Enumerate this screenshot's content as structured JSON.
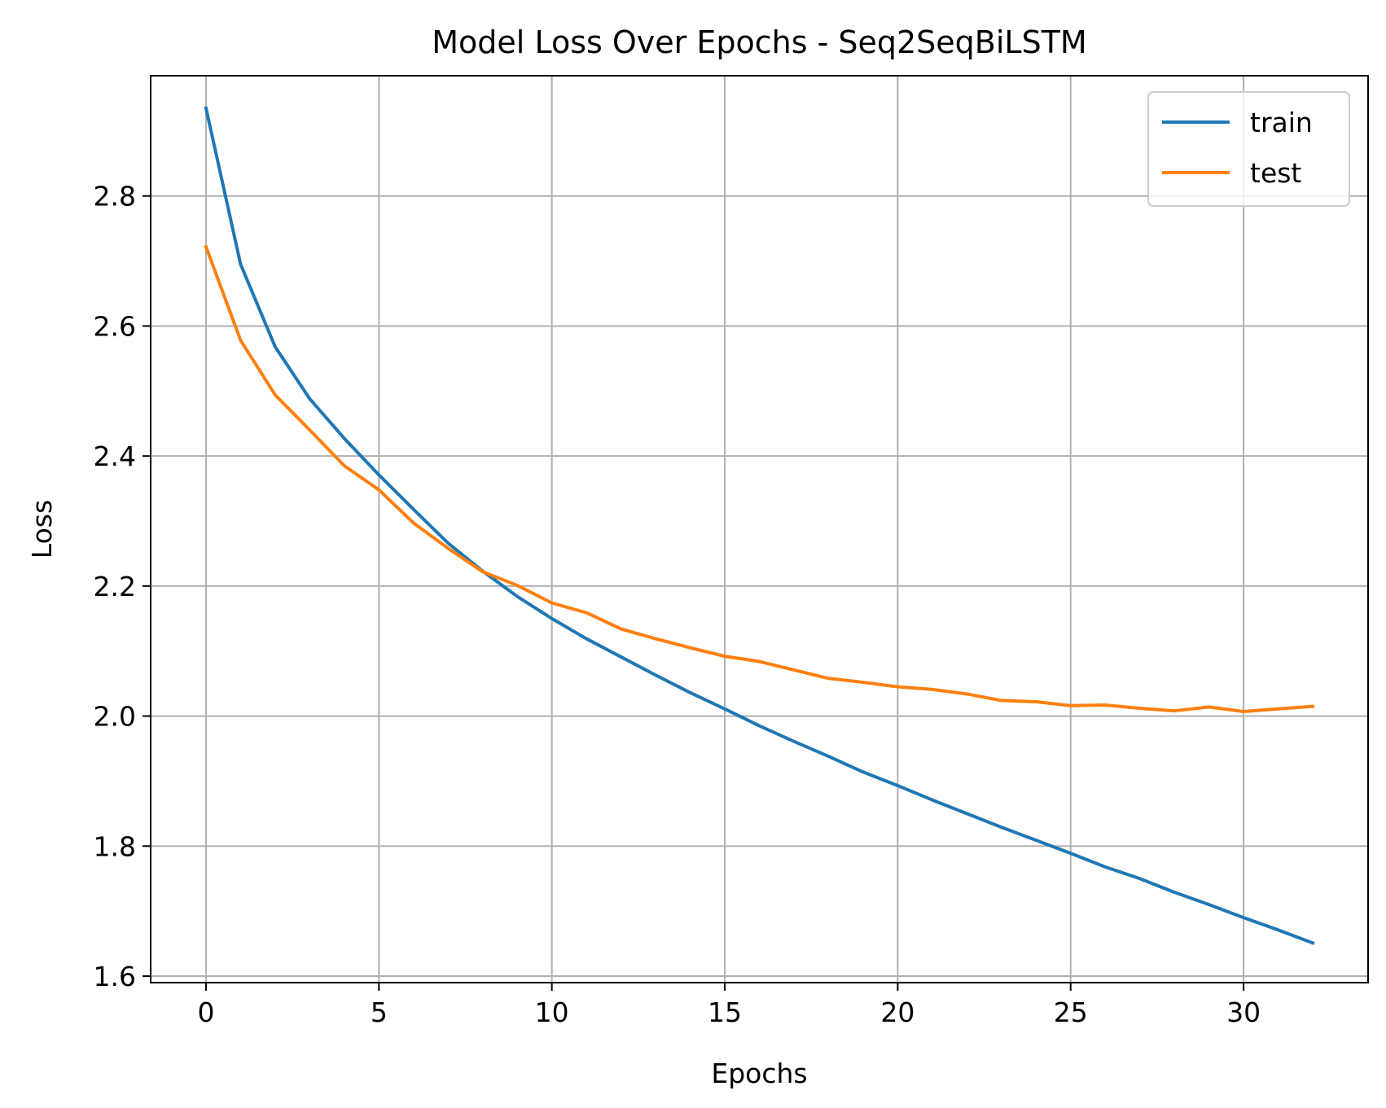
{
  "chart_data": {
    "type": "line",
    "title": "Model Loss Over Epochs - Seq2SeqBiLSTM",
    "xlabel": "Epochs",
    "ylabel": "Loss",
    "xlim": [
      -1.6,
      33.6
    ],
    "ylim": [
      1.59,
      2.985
    ],
    "xticks": [
      0,
      5,
      10,
      15,
      20,
      25,
      30
    ],
    "yticks": [
      1.6,
      1.8,
      2.0,
      2.2,
      2.4,
      2.6,
      2.8
    ],
    "ytick_labels": [
      "1.6",
      "1.8",
      "2.0",
      "2.2",
      "2.4",
      "2.6",
      "2.8"
    ],
    "grid": true,
    "legend_position": "top-right",
    "x": [
      0,
      1,
      2,
      3,
      4,
      5,
      6,
      7,
      8,
      9,
      10,
      11,
      12,
      13,
      14,
      15,
      16,
      17,
      18,
      19,
      20,
      21,
      22,
      23,
      24,
      25,
      26,
      27,
      28,
      29,
      30,
      31,
      32
    ],
    "series": [
      {
        "name": "train",
        "color": "#1f77b4",
        "values": [
          2.935,
          2.695,
          2.568,
          2.488,
          2.427,
          2.371,
          2.318,
          2.266,
          2.223,
          2.184,
          2.15,
          2.119,
          2.091,
          2.063,
          2.036,
          2.011,
          1.985,
          1.961,
          1.938,
          1.914,
          1.893,
          1.871,
          1.85,
          1.829,
          1.809,
          1.789,
          1.768,
          1.75,
          1.729,
          1.71,
          1.69,
          1.671,
          1.651
        ]
      },
      {
        "name": "test",
        "color": "#ff7f0e",
        "values": [
          2.722,
          2.578,
          2.494,
          2.44,
          2.385,
          2.348,
          2.297,
          2.258,
          2.222,
          2.201,
          2.174,
          2.159,
          2.134,
          2.119,
          2.105,
          2.092,
          2.084,
          2.071,
          2.058,
          2.052,
          2.045,
          2.041,
          2.034,
          2.024,
          2.022,
          2.016,
          2.017,
          2.012,
          2.008,
          2.014,
          2.007,
          2.011,
          2.015
        ]
      }
    ]
  }
}
